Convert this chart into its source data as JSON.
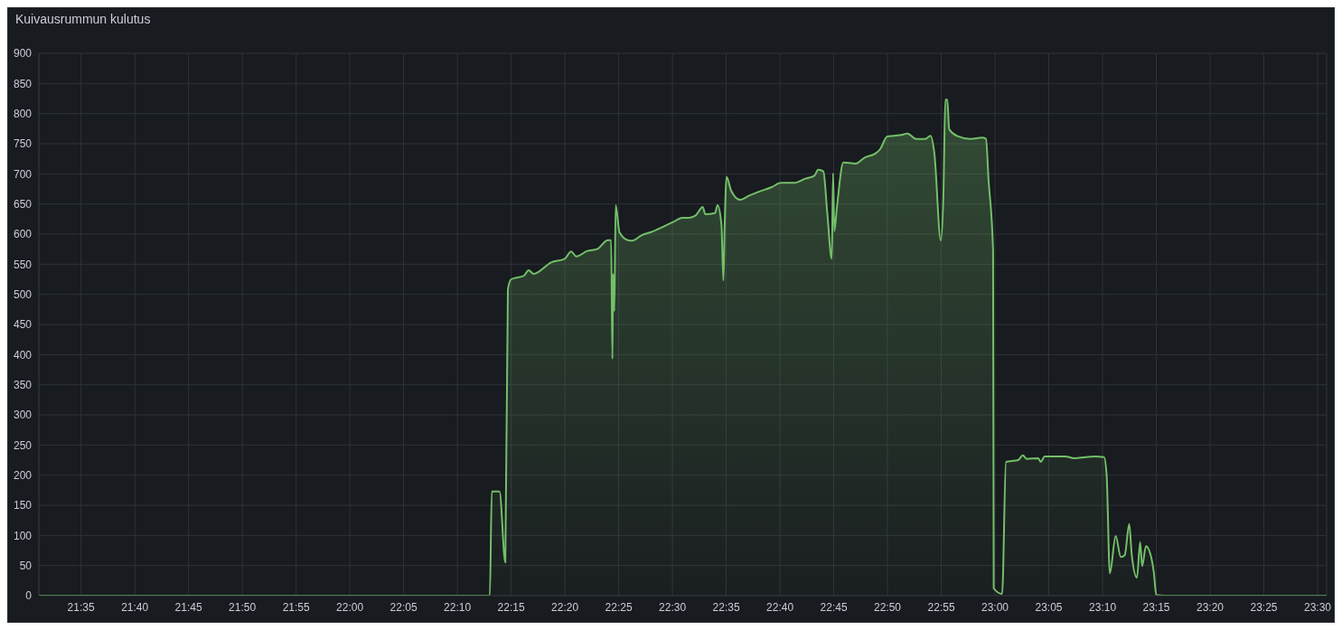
{
  "chart_data": {
    "type": "area",
    "title": "Kuivausrummun kulutus",
    "x": [
      21.518,
      22.186,
      22.217,
      22.22,
      22.232,
      22.241,
      22.245,
      22.25,
      22.27,
      22.277,
      22.285,
      22.312,
      22.333,
      22.343,
      22.351,
      22.368,
      22.383,
      22.4,
      22.405,
      22.407,
      22.408,
      22.41,
      22.412,
      22.418,
      22.431,
      22.438,
      22.452,
      22.466,
      22.487,
      22.501,
      22.515,
      22.524,
      22.536,
      22.547,
      22.551,
      22.566,
      22.57,
      22.576,
      22.579,
      22.581,
      22.584,
      22.591,
      22.605,
      22.619,
      22.633,
      22.654,
      22.668,
      22.689,
      22.706,
      22.72,
      22.726,
      22.734,
      22.74,
      22.747,
      22.749,
      22.751,
      22.755,
      22.765,
      22.784,
      22.798,
      22.815,
      22.822,
      22.833,
      22.843,
      22.857,
      22.864,
      22.878,
      22.892,
      22.9,
      22.906,
      22.916,
      22.92,
      22.923,
      22.926,
      22.929,
      22.941,
      22.962,
      22.98,
      22.986,
      22.99,
      22.997,
      22.998,
      23.011,
      23.017,
      23.036,
      23.043,
      23.049,
      23.067,
      23.071,
      23.077,
      23.109,
      23.123,
      23.141,
      23.155,
      23.169,
      23.173,
      23.178,
      23.187,
      23.195,
      23.201,
      23.208,
      23.212,
      23.22,
      23.225,
      23.228,
      23.234,
      23.242,
      23.246,
      23.25,
      23.263,
      23.305,
      23.514
    ],
    "values": [
      0,
      0,
      0,
      173,
      173,
      55,
      508,
      525,
      531,
      540,
      534,
      553,
      559,
      571,
      563,
      572,
      575,
      590,
      590,
      393,
      534,
      472,
      648,
      603,
      590,
      589,
      598,
      603,
      613,
      620,
      627,
      627,
      631,
      645,
      633,
      635,
      648,
      615,
      523,
      615,
      695,
      672,
      657,
      664,
      670,
      678,
      685,
      685,
      692,
      697,
      707,
      704,
      635,
      559,
      701,
      605,
      645,
      719,
      717,
      727,
      734,
      741,
      762,
      763,
      765,
      767,
      758,
      758,
      763,
      734,
      589,
      664,
      823,
      823,
      774,
      763,
      758,
      760,
      758,
      690,
      571,
      12,
      3,
      222,
      225,
      233,
      227,
      228,
      222,
      231,
      231,
      228,
      230,
      231,
      230,
      200,
      37,
      99,
      64,
      67,
      119,
      67,
      30,
      89,
      49,
      82,
      64,
      40,
      1,
      0,
      0,
      0
    ],
    "color": "#73bf69",
    "xlim": [
      21.518,
      23.514
    ],
    "xticks": [
      {
        "value": 21.5833,
        "label": "21:35"
      },
      {
        "value": 21.6667,
        "label": "21:40"
      },
      {
        "value": 21.75,
        "label": "21:45"
      },
      {
        "value": 21.8333,
        "label": "21:50"
      },
      {
        "value": 21.9167,
        "label": "21:55"
      },
      {
        "value": 22,
        "label": "22:00"
      },
      {
        "value": 22.0833,
        "label": "22:05"
      },
      {
        "value": 22.1667,
        "label": "22:10"
      },
      {
        "value": 22.25,
        "label": "22:15"
      },
      {
        "value": 22.3333,
        "label": "22:20"
      },
      {
        "value": 22.4167,
        "label": "22:25"
      },
      {
        "value": 22.5,
        "label": "22:30"
      },
      {
        "value": 22.5833,
        "label": "22:35"
      },
      {
        "value": 22.6667,
        "label": "22:40"
      },
      {
        "value": 22.75,
        "label": "22:45"
      },
      {
        "value": 22.8333,
        "label": "22:50"
      },
      {
        "value": 22.9167,
        "label": "22:55"
      },
      {
        "value": 23,
        "label": "23:00"
      },
      {
        "value": 23.0833,
        "label": "23:05"
      },
      {
        "value": 23.1667,
        "label": "23:10"
      },
      {
        "value": 23.25,
        "label": "23:15"
      },
      {
        "value": 23.3333,
        "label": "23:20"
      },
      {
        "value": 23.4167,
        "label": "23:25"
      },
      {
        "value": 23.5,
        "label": "23:30"
      }
    ],
    "ylim": [
      0,
      900
    ],
    "yticks": [
      0,
      50,
      100,
      150,
      200,
      250,
      300,
      350,
      400,
      450,
      500,
      550,
      600,
      650,
      700,
      750,
      800,
      850,
      900
    ],
    "grid": true,
    "legend": false,
    "marker": "none",
    "line_style": "solid"
  }
}
